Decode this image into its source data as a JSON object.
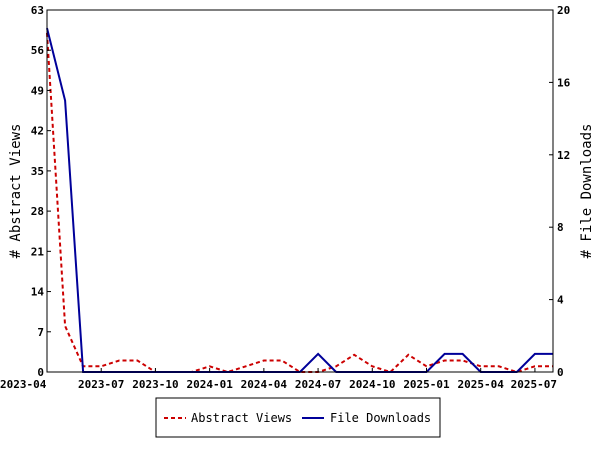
{
  "chart_data": {
    "type": "line",
    "x_labels": [
      "2023-04",
      "2023-07",
      "2023-10",
      "2024-01",
      "2024-04",
      "2024-07",
      "2024-10",
      "2025-01",
      "2025-04",
      "2025-07"
    ],
    "x": [
      "2023-04",
      "2023-05",
      "2023-06",
      "2023-07",
      "2023-08",
      "2023-09",
      "2023-10",
      "2023-11",
      "2023-12",
      "2024-01",
      "2024-02",
      "2024-03",
      "2024-04",
      "2024-05",
      "2024-06",
      "2024-07",
      "2024-08",
      "2024-09",
      "2024-10",
      "2024-11",
      "2024-12",
      "2025-01",
      "2025-02",
      "2025-03",
      "2025-04",
      "2025-05",
      "2025-06",
      "2025-07",
      "2025-08"
    ],
    "left_axis": {
      "label": "# Abstract Views",
      "ylim": [
        0,
        63
      ],
      "ticks": [
        0,
        7,
        14,
        21,
        28,
        35,
        42,
        49,
        56,
        63
      ]
    },
    "right_axis": {
      "label": "# File Downloads",
      "ylim": [
        0,
        20
      ],
      "ticks": [
        0,
        4,
        8,
        12,
        16,
        20
      ]
    },
    "series": [
      {
        "name": "Abstract Views",
        "axis": "left",
        "color": "#cc0000",
        "dash": true,
        "values": [
          59,
          8,
          1,
          1,
          2,
          2,
          0,
          0,
          0,
          1,
          0,
          1,
          2,
          2,
          0,
          0,
          1,
          3,
          1,
          0,
          3,
          1,
          2,
          2,
          1,
          1,
          0,
          1,
          1
        ]
      },
      {
        "name": "File Downloads",
        "axis": "right",
        "color": "#000099",
        "dash": false,
        "values": [
          19,
          15,
          0,
          0,
          0,
          0,
          0,
          0,
          0,
          0,
          0,
          0,
          0,
          0,
          0,
          1,
          0,
          0,
          0,
          0,
          0,
          0,
          1,
          1,
          0,
          0,
          0,
          1,
          1
        ]
      }
    ],
    "grid": false,
    "legend_position": "bottom"
  }
}
